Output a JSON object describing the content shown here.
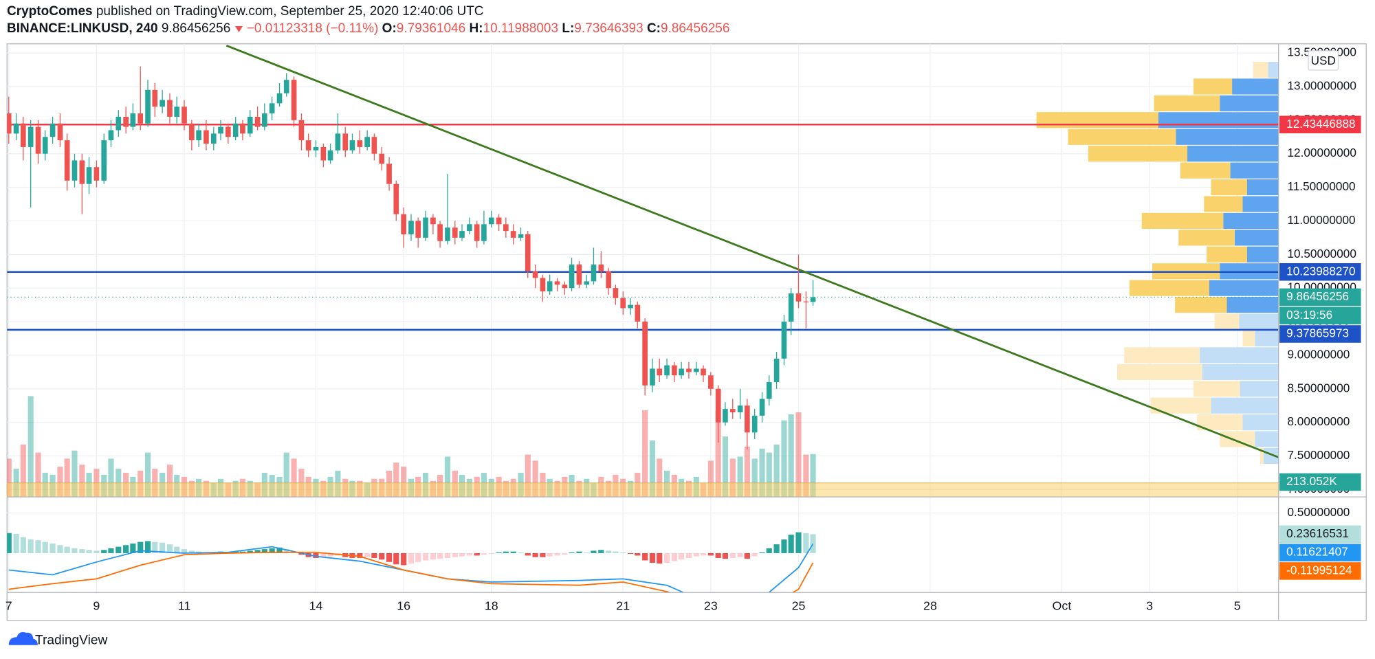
{
  "header": {
    "publisher": "CryptoComes",
    "published": "published on TradingView.com, September 25, 2020 12:40:06 UTC",
    "symbol": "BINANCE:LINKUSD, 240",
    "change": "−0.01123318 (−0.11%)",
    "ohlc_labels": [
      "O:",
      "H:",
      "L:",
      "C:"
    ]
  },
  "footer": {
    "brand": "TradingView"
  },
  "chart_data": {
    "type": "candlestick",
    "currency": "USD",
    "countdown": "03:19:56",
    "up_color": "#26a69a",
    "down_color": "#ef5350",
    "grid": true,
    "x": [
      7,
      7.17,
      7.33,
      7.5,
      7.67,
      7.83,
      8,
      8.17,
      8.33,
      8.5,
      8.67,
      8.83,
      9,
      9.17,
      9.33,
      9.5,
      9.67,
      9.83,
      10,
      10.17,
      10.33,
      10.5,
      10.67,
      10.83,
      11,
      11.17,
      11.33,
      11.5,
      11.67,
      11.83,
      12,
      12.17,
      12.33,
      12.5,
      12.67,
      12.83,
      13,
      13.17,
      13.33,
      13.5,
      13.67,
      13.83,
      14,
      14.17,
      14.33,
      14.5,
      14.67,
      14.83,
      15,
      15.17,
      15.33,
      15.5,
      15.67,
      15.83,
      16,
      16.17,
      16.33,
      16.5,
      16.67,
      16.83,
      17,
      17.17,
      17.33,
      17.5,
      17.67,
      17.83,
      18,
      18.17,
      18.33,
      18.5,
      18.67,
      18.83,
      19,
      19.17,
      19.33,
      19.5,
      19.67,
      19.83,
      20,
      20.17,
      20.33,
      20.5,
      20.67,
      20.83,
      21,
      21.17,
      21.33,
      21.5,
      21.67,
      21.83,
      22,
      22.17,
      22.33,
      22.5,
      22.67,
      22.83,
      23,
      23.17,
      23.33,
      23.5,
      23.67,
      23.83,
      24,
      24.17,
      24.33,
      24.5,
      24.67,
      24.83,
      25,
      25.17,
      25.33
    ],
    "open": [
      12.6,
      12.3,
      12.45,
      12.1,
      12.4,
      12.0,
      12.25,
      12.45,
      12.2,
      11.6,
      11.9,
      11.55,
      11.8,
      11.6,
      12.2,
      12.35,
      12.55,
      12.4,
      12.6,
      12.45,
      12.95,
      12.7,
      12.8,
      12.55,
      12.7,
      12.45,
      12.2,
      12.35,
      12.15,
      12.3,
      12.4,
      12.25,
      12.45,
      12.3,
      12.55,
      12.4,
      12.6,
      12.75,
      12.9,
      13.1,
      12.5,
      12.2,
      12.05,
      12.1,
      11.9,
      12.05,
      12.3,
      12.05,
      12.2,
      12.1,
      12.25,
      12.0,
      11.85,
      11.55,
      11.1,
      10.8,
      11.0,
      10.75,
      11.05,
      10.95,
      10.7,
      10.9,
      10.75,
      10.85,
      10.95,
      10.7,
      10.95,
      11.05,
      10.95,
      10.85,
      10.75,
      10.8,
      10.25,
      10.15,
      9.95,
      10.1,
      10.05,
      10.0,
      10.35,
      10.05,
      10.1,
      10.35,
      10.25,
      10.0,
      9.85,
      9.7,
      9.75,
      9.5,
      8.55,
      8.8,
      8.7,
      8.85,
      8.7,
      8.8,
      8.75,
      8.8,
      8.7,
      8.5,
      8.0,
      8.2,
      8.15,
      8.25,
      7.85,
      8.1,
      8.35,
      8.6,
      8.95,
      9.5,
      9.92,
      9.8,
      9.79361046
    ],
    "high": [
      12.85,
      12.6,
      12.55,
      12.5,
      12.5,
      12.35,
      12.55,
      12.6,
      12.3,
      12.0,
      12.0,
      11.95,
      11.9,
      12.3,
      12.5,
      12.65,
      12.7,
      12.75,
      13.3,
      13.1,
      13.05,
      12.95,
      12.9,
      12.85,
      12.8,
      12.5,
      12.45,
      12.5,
      12.4,
      12.5,
      12.45,
      12.55,
      12.5,
      12.65,
      12.7,
      12.75,
      12.85,
      13.05,
      13.2,
      13.15,
      12.6,
      12.3,
      12.2,
      12.15,
      12.15,
      12.6,
      12.4,
      12.3,
      12.35,
      12.35,
      12.3,
      12.1,
      11.95,
      11.6,
      11.2,
      11.1,
      11.05,
      11.15,
      11.1,
      11.0,
      11.7,
      11.0,
      10.95,
      11.05,
      11.0,
      11.15,
      11.15,
      11.1,
      11.05,
      10.95,
      10.9,
      10.85,
      10.35,
      10.2,
      10.2,
      10.15,
      10.1,
      10.45,
      10.4,
      10.2,
      10.6,
      10.55,
      10.3,
      10.05,
      9.95,
      9.85,
      9.8,
      9.55,
      8.95,
      8.95,
      8.95,
      8.9,
      8.9,
      8.9,
      8.9,
      8.85,
      8.75,
      8.55,
      8.3,
      8.35,
      8.5,
      8.35,
      8.2,
      8.45,
      8.7,
      9.05,
      9.6,
      10.0,
      10.5,
      9.95,
      10.11988003
    ],
    "low": [
      12.15,
      12.2,
      11.9,
      11.2,
      11.85,
      11.9,
      12.15,
      12.1,
      11.45,
      11.5,
      11.1,
      11.4,
      11.5,
      11.55,
      12.1,
      12.25,
      12.3,
      12.35,
      12.35,
      12.4,
      12.55,
      12.6,
      12.45,
      12.45,
      12.35,
      12.05,
      12.1,
      12.05,
      12.05,
      12.2,
      12.15,
      12.2,
      12.2,
      12.25,
      12.35,
      12.35,
      12.5,
      12.7,
      12.85,
      12.4,
      12.05,
      11.95,
      11.95,
      11.8,
      11.85,
      12.0,
      11.95,
      12.0,
      12.0,
      12.05,
      11.9,
      11.75,
      11.45,
      11.0,
      10.6,
      10.7,
      10.6,
      10.7,
      10.8,
      10.6,
      10.65,
      10.65,
      10.7,
      10.8,
      10.6,
      10.65,
      10.9,
      10.85,
      10.75,
      10.65,
      10.7,
      10.15,
      10.0,
      9.8,
      9.9,
      9.95,
      9.9,
      9.95,
      10.0,
      10.0,
      10.05,
      10.15,
      9.9,
      9.75,
      9.6,
      9.6,
      9.4,
      8.4,
      8.45,
      8.6,
      8.65,
      8.6,
      8.65,
      8.65,
      8.7,
      8.6,
      8.4,
      7.7,
      7.95,
      8.05,
      8.05,
      7.6,
      7.75,
      8.0,
      8.25,
      8.5,
      8.85,
      9.3,
      9.7,
      9.4,
      9.73646393
    ],
    "close": [
      12.3,
      12.45,
      12.1,
      12.4,
      12.0,
      12.25,
      12.45,
      12.2,
      11.6,
      11.9,
      11.55,
      11.8,
      11.6,
      12.2,
      12.35,
      12.55,
      12.4,
      12.6,
      12.45,
      12.95,
      12.7,
      12.8,
      12.55,
      12.7,
      12.45,
      12.2,
      12.35,
      12.15,
      12.3,
      12.4,
      12.25,
      12.45,
      12.3,
      12.55,
      12.4,
      12.6,
      12.75,
      12.9,
      13.1,
      12.5,
      12.2,
      12.05,
      12.1,
      11.9,
      12.05,
      12.3,
      12.05,
      12.2,
      12.1,
      12.25,
      12.0,
      11.85,
      11.55,
      11.1,
      10.8,
      11.0,
      10.75,
      11.05,
      10.95,
      10.7,
      10.9,
      10.75,
      10.85,
      10.95,
      10.7,
      10.95,
      11.05,
      10.95,
      10.85,
      10.75,
      10.8,
      10.25,
      10.15,
      9.95,
      10.1,
      10.05,
      10.0,
      10.35,
      10.05,
      10.1,
      10.35,
      10.25,
      10.0,
      9.85,
      9.7,
      9.75,
      9.5,
      8.55,
      8.8,
      8.7,
      8.85,
      8.7,
      8.8,
      8.75,
      8.8,
      8.7,
      8.5,
      8.0,
      8.2,
      8.15,
      8.25,
      7.85,
      8.1,
      8.35,
      8.6,
      8.95,
      9.5,
      9.92,
      9.8,
      9.79361046,
      9.86456256
    ],
    "xlim": [
      6.96,
      35.94
    ],
    "xticks": [
      7,
      9,
      11,
      14,
      16,
      18,
      21,
      23,
      25,
      28,
      {
        "value": 31,
        "label": "Oct"
      },
      {
        "value": 33,
        "label": "3"
      },
      {
        "value": 35,
        "label": "5"
      }
    ],
    "ylim": [
      6.89,
      13.61
    ],
    "yticks": [
      {
        "value": 13.5,
        "label": "13.50000000"
      },
      {
        "value": 13,
        "label": "13.00000000"
      },
      {
        "value": 12.5,
        "label": "12.50000000"
      },
      {
        "value": 12,
        "label": "12.00000000"
      },
      {
        "value": 11.5,
        "label": "11.50000000"
      },
      {
        "value": 11,
        "label": "11.00000000"
      },
      {
        "value": 10.5,
        "label": "10.50000000"
      },
      {
        "value": 10,
        "label": "10.00000000"
      },
      {
        "value": 9.5,
        "label": "9.50000000"
      },
      {
        "value": 9,
        "label": "9.00000000"
      },
      {
        "value": 8.5,
        "label": "8.50000000"
      },
      {
        "value": 8,
        "label": "8.00000000"
      },
      {
        "value": 7.5,
        "label": "7.50000000"
      },
      {
        "value": 7,
        "label": "7.00000000"
      }
    ],
    "levels": [
      {
        "price": 12.43446888,
        "color": "#f23645"
      },
      {
        "price": {
          "value": 10.2398827,
          "label": "10.23988270"
        },
        "color": "#1e53c8"
      },
      {
        "price": 9.37865973,
        "color": "#1e53c8"
      }
    ],
    "trendline": {
      "color": "#3d7a1f",
      "x": [
        11.96,
        35.94
      ],
      "y": [
        13.61,
        7.48
      ]
    },
    "volume": {
      "last_value_label": "213.052K",
      "values": [
        190,
        140,
        260,
        500,
        220,
        120,
        110,
        150,
        190,
        230,
        160,
        120,
        140,
        110,
        190,
        140,
        120,
        100,
        130,
        220,
        140,
        120,
        160,
        110,
        100,
        80,
        90,
        80,
        70,
        90,
        70,
        80,
        90,
        80,
        70,
        120,
        110,
        100,
        220,
        190,
        140,
        100,
        90,
        80,
        100,
        130,
        90,
        80,
        80,
        70,
        90,
        90,
        130,
        170,
        150,
        90,
        100,
        120,
        80,
        110,
        200,
        130,
        110,
        90,
        100,
        120,
        90,
        100,
        80,
        90,
        120,
        210,
        180,
        120,
        90,
        80,
        100,
        110,
        80,
        90,
        70,
        100,
        80,
        110,
        90,
        80,
        120,
        430,
        280,
        190,
        130,
        110,
        90,
        80,
        100,
        70,
        180,
        430,
        300,
        190,
        200,
        250,
        190,
        240,
        220,
        260,
        380,
        410,
        420,
        210,
        213.052
      ]
    },
    "volume_profile": {
      "up_color": "#5ea4ee",
      "down_color": "#f9d26b",
      "up_color_outside": "#c2def6",
      "down_color_outside": "#fdeac0",
      "rows": [
        {
          "price": 13.25,
          "up": 12,
          "down": 17,
          "value_area": false
        },
        {
          "price": 13,
          "up": 53,
          "down": 44,
          "value_area": true
        },
        {
          "price": 12.75,
          "up": 67,
          "down": 75,
          "value_area": true
        },
        {
          "price": 12.5,
          "up": 137,
          "down": 139,
          "value_area": true
        },
        {
          "price": 12.25,
          "up": 117,
          "down": 123,
          "value_area": true
        },
        {
          "price": 12,
          "up": 104,
          "down": 113,
          "value_area": true
        },
        {
          "price": 11.75,
          "up": 55,
          "down": 57,
          "value_area": true
        },
        {
          "price": 11.5,
          "up": 36,
          "down": 41,
          "value_area": true
        },
        {
          "price": 11.25,
          "up": 41,
          "down": 44,
          "value_area": true
        },
        {
          "price": 11,
          "up": 63,
          "down": 93,
          "value_area": true
        },
        {
          "price": 10.75,
          "up": 50,
          "down": 64,
          "value_area": true
        },
        {
          "price": 10.5,
          "up": 36,
          "down": 46,
          "value_area": true
        },
        {
          "price": 10.25,
          "up": 67,
          "down": 77,
          "value_area": true
        },
        {
          "price": 10,
          "up": 79,
          "down": 91,
          "value_area": true
        },
        {
          "price": 9.75,
          "up": 59,
          "down": 59,
          "value_area": true
        },
        {
          "price": 9.5,
          "up": 45,
          "down": 28,
          "value_area": false
        },
        {
          "price": 9.25,
          "up": 27,
          "down": 14,
          "value_area": false
        },
        {
          "price": 9,
          "up": 90,
          "down": 86,
          "value_area": false
        },
        {
          "price": 8.75,
          "up": 87,
          "down": 97,
          "value_area": false
        },
        {
          "price": 8.5,
          "up": 44,
          "down": 53,
          "value_area": false
        },
        {
          "price": 8.25,
          "up": 77,
          "down": 69,
          "value_area": false
        },
        {
          "price": 8,
          "up": 41,
          "down": 52,
          "value_area": false
        },
        {
          "price": 7.75,
          "up": 27,
          "down": 40,
          "value_area": false
        },
        {
          "price": 7.5,
          "up": 17,
          "down": 4,
          "value_area": false
        }
      ]
    },
    "macd": {
      "ylim": [
        -0.49,
        0.7
      ],
      "yticks": [
        {
          "value": 0.5,
          "label": "0.50000000"
        }
      ],
      "histogram": {
        "color": "#26a69a",
        "values": [
          0.25,
          0.24,
          0.2,
          0.17,
          0.16,
          0.14,
          0.12,
          0.1,
          0.08,
          0.06,
          0.05,
          0.04,
          0.03,
          0.04,
          0.06,
          0.08,
          0.1,
          0.12,
          0.14,
          0.15,
          0.14,
          0.13,
          0.11,
          0.08,
          0.05,
          0.03,
          0.02,
          0.01,
          0.01,
          0.02,
          0.01,
          0.02,
          0.02,
          0.03,
          0.04,
          0.05,
          0.06,
          0.07,
          0.05,
          0.02,
          -0.02,
          -0.05,
          -0.06,
          -0.05,
          -0.04,
          -0.03,
          -0.05,
          -0.06,
          -0.06,
          -0.05,
          -0.06,
          -0.08,
          -0.11,
          -0.14,
          -0.15,
          -0.13,
          -0.11,
          -0.09,
          -0.08,
          -0.07,
          -0.06,
          -0.05,
          -0.04,
          -0.03,
          -0.03,
          -0.02,
          -0.01,
          0.01,
          0.02,
          0.02,
          0.01,
          -0.03,
          -0.05,
          -0.05,
          -0.04,
          -0.03,
          -0.02,
          0.01,
          0.02,
          0.01,
          0.03,
          0.04,
          0.03,
          0.02,
          0.01,
          -0.01,
          -0.03,
          -0.09,
          -0.12,
          -0.13,
          -0.12,
          -0.1,
          -0.08,
          -0.06,
          -0.04,
          -0.03,
          -0.03,
          -0.06,
          -0.07,
          -0.06,
          -0.05,
          -0.07,
          -0.04,
          0.01,
          0.06,
          0.11,
          0.17,
          0.23,
          0.26,
          0.25,
          0.23616531
        ]
      },
      "lines": [
        {
          "name": "MACD",
          "color": "#2196f3",
          "x": [
            7,
            8,
            9,
            10,
            11,
            12,
            13,
            14,
            15,
            16,
            17,
            18,
            19,
            20,
            21,
            22,
            23,
            24,
            25,
            25.33
          ],
          "values": [
            -0.21,
            -0.27,
            -0.11,
            0.03,
            0,
            0.01,
            0.08,
            -0.04,
            -0.1,
            -0.21,
            -0.32,
            -0.36,
            -0.35,
            -0.34,
            -0.32,
            -0.4,
            -0.64,
            -0.64,
            -0.18,
            0.11621407
          ]
        },
        {
          "name": "Signal",
          "color": "#ff6d00",
          "x": [
            7,
            8,
            9,
            10,
            11,
            12,
            13,
            14,
            15,
            16,
            17,
            18,
            19,
            20,
            21,
            22,
            23,
            24,
            25,
            25.33
          ],
          "values": [
            -0.45,
            -0.38,
            -0.32,
            -0.15,
            -0.02,
            0,
            0.01,
            0.01,
            -0.04,
            -0.21,
            -0.32,
            -0.38,
            -0.39,
            -0.4,
            -0.36,
            -0.48,
            -0.64,
            -0.75,
            -0.45,
            -0.11995124
          ]
        }
      ]
    }
  }
}
